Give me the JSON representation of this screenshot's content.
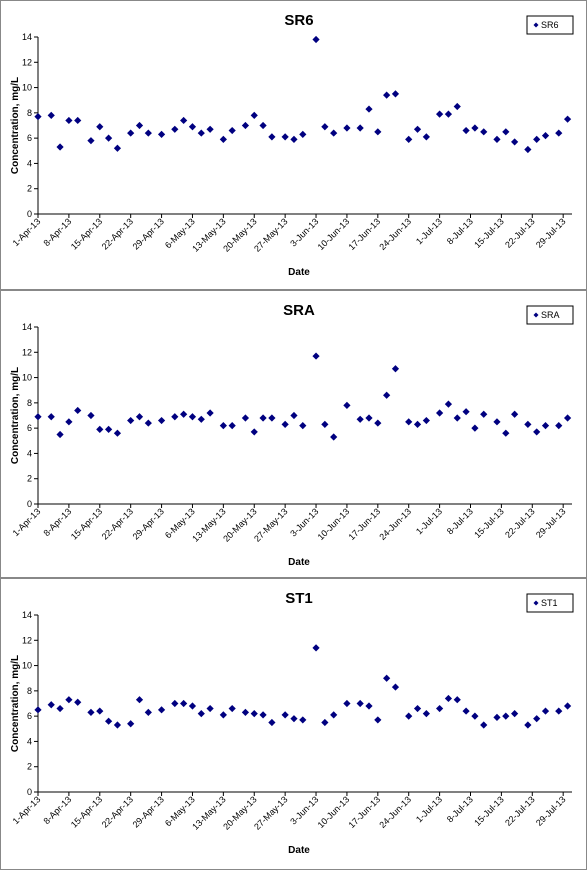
{
  "chart_data": [
    {
      "type": "scatter",
      "title": "SR6",
      "x_label": "Date",
      "y_label": "Concentration, mg/L",
      "x": [
        "2013-04-01",
        "2013-04-04",
        "2013-04-06",
        "2013-04-08",
        "2013-04-10",
        "2013-04-13",
        "2013-04-15",
        "2013-04-17",
        "2013-04-19",
        "2013-04-22",
        "2013-04-24",
        "2013-04-26",
        "2013-04-29",
        "2013-05-02",
        "2013-05-04",
        "2013-05-06",
        "2013-05-08",
        "2013-05-10",
        "2013-05-13",
        "2013-05-15",
        "2013-05-18",
        "2013-05-20",
        "2013-05-22",
        "2013-05-24",
        "2013-05-27",
        "2013-05-29",
        "2013-05-31",
        "2013-06-03",
        "2013-06-05",
        "2013-06-07",
        "2013-06-10",
        "2013-06-13",
        "2013-06-15",
        "2013-06-17",
        "2013-06-19",
        "2013-06-21",
        "2013-06-24",
        "2013-06-26",
        "2013-06-28",
        "2013-07-01",
        "2013-07-03",
        "2013-07-05",
        "2013-07-07",
        "2013-07-09",
        "2013-07-11",
        "2013-07-14",
        "2013-07-16",
        "2013-07-18",
        "2013-07-21",
        "2013-07-23",
        "2013-07-25",
        "2013-07-28",
        "2013-07-30"
      ],
      "series": [
        {
          "name": "SR6",
          "color": "#000080",
          "values": [
            7.7,
            7.8,
            5.3,
            7.4,
            7.4,
            5.8,
            6.9,
            6.0,
            5.2,
            6.4,
            7.0,
            6.4,
            6.3,
            6.7,
            7.4,
            6.9,
            6.4,
            6.7,
            5.9,
            6.6,
            7.0,
            7.8,
            7.0,
            6.1,
            6.1,
            5.9,
            6.3,
            13.8,
            6.9,
            6.4,
            6.8,
            6.8,
            8.3,
            6.5,
            9.4,
            9.5,
            5.9,
            6.7,
            6.1,
            7.9,
            7.9,
            8.5,
            6.6,
            6.8,
            6.5,
            5.9,
            6.5,
            5.7,
            5.1,
            5.9,
            6.2,
            6.4,
            7.5
          ]
        }
      ],
      "xlim": [
        "2013-04-01",
        "2013-07-31"
      ],
      "xticks": [
        {
          "value": "2013-04-01",
          "label": "1-Apr-13"
        },
        {
          "value": "2013-04-08",
          "label": "8-Apr-13"
        },
        {
          "value": "2013-04-15",
          "label": "15-Apr-13"
        },
        {
          "value": "2013-04-22",
          "label": "22-Apr-13"
        },
        {
          "value": "2013-04-29",
          "label": "29-Apr-13"
        },
        {
          "value": "2013-05-06",
          "label": "6-May-13"
        },
        {
          "value": "2013-05-13",
          "label": "13-May-13"
        },
        {
          "value": "2013-05-20",
          "label": "20-May-13"
        },
        {
          "value": "2013-05-27",
          "label": "27-May-13"
        },
        {
          "value": "2013-06-03",
          "label": "3-Jun-13"
        },
        {
          "value": "2013-06-10",
          "label": "10-Jun-13"
        },
        {
          "value": "2013-06-17",
          "label": "17-Jun-13"
        },
        {
          "value": "2013-06-24",
          "label": "24-Jun-13"
        },
        {
          "value": "2013-07-01",
          "label": "1-Jul-13"
        },
        {
          "value": "2013-07-08",
          "label": "8-Jul-13"
        },
        {
          "value": "2013-07-15",
          "label": "15-Jul-13"
        },
        {
          "value": "2013-07-22",
          "label": "22-Jul-13"
        },
        {
          "value": "2013-07-29",
          "label": "29-Jul-13"
        }
      ],
      "ylim": [
        0,
        14
      ],
      "yticks": [
        0,
        2,
        4,
        6,
        8,
        10,
        12,
        14
      ],
      "grid": false,
      "legend": "top-right"
    },
    {
      "type": "scatter",
      "title": "SRA",
      "x_label": "Date",
      "y_label": "Concentration, mg/L",
      "x": [
        "2013-04-01",
        "2013-04-04",
        "2013-04-06",
        "2013-04-08",
        "2013-04-10",
        "2013-04-13",
        "2013-04-15",
        "2013-04-17",
        "2013-04-19",
        "2013-04-22",
        "2013-04-24",
        "2013-04-26",
        "2013-04-29",
        "2013-05-02",
        "2013-05-04",
        "2013-05-06",
        "2013-05-08",
        "2013-05-10",
        "2013-05-13",
        "2013-05-15",
        "2013-05-18",
        "2013-05-20",
        "2013-05-22",
        "2013-05-24",
        "2013-05-27",
        "2013-05-29",
        "2013-05-31",
        "2013-06-03",
        "2013-06-05",
        "2013-06-07",
        "2013-06-10",
        "2013-06-13",
        "2013-06-15",
        "2013-06-17",
        "2013-06-19",
        "2013-06-21",
        "2013-06-24",
        "2013-06-26",
        "2013-06-28",
        "2013-07-01",
        "2013-07-03",
        "2013-07-05",
        "2013-07-07",
        "2013-07-09",
        "2013-07-11",
        "2013-07-14",
        "2013-07-16",
        "2013-07-18",
        "2013-07-21",
        "2013-07-23",
        "2013-07-25",
        "2013-07-28",
        "2013-07-30"
      ],
      "series": [
        {
          "name": "SRA",
          "color": "#000080",
          "values": [
            6.9,
            6.9,
            5.5,
            6.5,
            7.4,
            7.0,
            5.9,
            5.9,
            5.6,
            6.6,
            6.9,
            6.4,
            6.6,
            6.9,
            7.1,
            6.9,
            6.7,
            7.2,
            6.2,
            6.2,
            6.8,
            5.7,
            6.8,
            6.8,
            6.3,
            7.0,
            6.2,
            11.7,
            6.3,
            5.3,
            7.8,
            6.7,
            6.8,
            6.4,
            8.6,
            10.7,
            6.5,
            6.3,
            6.6,
            7.2,
            7.9,
            6.8,
            7.3,
            6.0,
            7.1,
            6.5,
            5.6,
            7.1,
            6.3,
            5.7,
            6.2,
            6.2,
            6.8
          ]
        }
      ],
      "xlim": [
        "2013-04-01",
        "2013-07-31"
      ],
      "xticks": [
        {
          "value": "2013-04-01",
          "label": "1-Apr-13"
        },
        {
          "value": "2013-04-08",
          "label": "8-Apr-13"
        },
        {
          "value": "2013-04-15",
          "label": "15-Apr-13"
        },
        {
          "value": "2013-04-22",
          "label": "22-Apr-13"
        },
        {
          "value": "2013-04-29",
          "label": "29-Apr-13"
        },
        {
          "value": "2013-05-06",
          "label": "6-May-13"
        },
        {
          "value": "2013-05-13",
          "label": "13-May-13"
        },
        {
          "value": "2013-05-20",
          "label": "20-May-13"
        },
        {
          "value": "2013-05-27",
          "label": "27-May-13"
        },
        {
          "value": "2013-06-03",
          "label": "3-Jun-13"
        },
        {
          "value": "2013-06-10",
          "label": "10-Jun-13"
        },
        {
          "value": "2013-06-17",
          "label": "17-Jun-13"
        },
        {
          "value": "2013-06-24",
          "label": "24-Jun-13"
        },
        {
          "value": "2013-07-01",
          "label": "1-Jul-13"
        },
        {
          "value": "2013-07-08",
          "label": "8-Jul-13"
        },
        {
          "value": "2013-07-15",
          "label": "15-Jul-13"
        },
        {
          "value": "2013-07-22",
          "label": "22-Jul-13"
        },
        {
          "value": "2013-07-29",
          "label": "29-Jul-13"
        }
      ],
      "ylim": [
        0,
        14
      ],
      "yticks": [
        0,
        2,
        4,
        6,
        8,
        10,
        12,
        14
      ],
      "grid": false,
      "legend": "top-right"
    },
    {
      "type": "scatter",
      "title": "ST1",
      "x_label": "Date",
      "y_label": "Concentration, mg/L",
      "x": [
        "2013-04-01",
        "2013-04-04",
        "2013-04-06",
        "2013-04-08",
        "2013-04-10",
        "2013-04-13",
        "2013-04-15",
        "2013-04-17",
        "2013-04-19",
        "2013-04-22",
        "2013-04-24",
        "2013-04-26",
        "2013-04-29",
        "2013-05-02",
        "2013-05-04",
        "2013-05-06",
        "2013-05-08",
        "2013-05-10",
        "2013-05-13",
        "2013-05-15",
        "2013-05-18",
        "2013-05-20",
        "2013-05-22",
        "2013-05-24",
        "2013-05-27",
        "2013-05-29",
        "2013-05-31",
        "2013-06-03",
        "2013-06-05",
        "2013-06-07",
        "2013-06-10",
        "2013-06-13",
        "2013-06-15",
        "2013-06-17",
        "2013-06-19",
        "2013-06-21",
        "2013-06-24",
        "2013-06-26",
        "2013-06-28",
        "2013-07-01",
        "2013-07-03",
        "2013-07-05",
        "2013-07-07",
        "2013-07-09",
        "2013-07-11",
        "2013-07-14",
        "2013-07-16",
        "2013-07-18",
        "2013-07-21",
        "2013-07-23",
        "2013-07-25",
        "2013-07-28",
        "2013-07-30"
      ],
      "series": [
        {
          "name": "ST1",
          "color": "#000080",
          "values": [
            6.5,
            6.9,
            6.6,
            7.3,
            7.1,
            6.3,
            6.4,
            5.6,
            5.3,
            5.4,
            7.3,
            6.3,
            6.5,
            7.0,
            7.0,
            6.8,
            6.2,
            6.6,
            6.1,
            6.6,
            6.3,
            6.2,
            6.1,
            5.5,
            6.1,
            5.8,
            5.7,
            11.4,
            5.5,
            6.1,
            7.0,
            7.0,
            6.8,
            5.7,
            9.0,
            8.3,
            6.0,
            6.6,
            6.2,
            6.6,
            7.4,
            7.3,
            6.4,
            6.0,
            5.3,
            5.9,
            6.0,
            6.2,
            5.3,
            5.8,
            6.4,
            6.4,
            6.8
          ]
        }
      ],
      "xlim": [
        "2013-04-01",
        "2013-07-31"
      ],
      "xticks": [
        {
          "value": "2013-04-01",
          "label": "1-Apr-13"
        },
        {
          "value": "2013-04-08",
          "label": "8-Apr-13"
        },
        {
          "value": "2013-04-15",
          "label": "15-Apr-13"
        },
        {
          "value": "2013-04-22",
          "label": "22-Apr-13"
        },
        {
          "value": "2013-04-29",
          "label": "29-Apr-13"
        },
        {
          "value": "2013-05-06",
          "label": "6-May-13"
        },
        {
          "value": "2013-05-13",
          "label": "13-May-13"
        },
        {
          "value": "2013-05-20",
          "label": "20-May-13"
        },
        {
          "value": "2013-05-27",
          "label": "27-May-13"
        },
        {
          "value": "2013-06-03",
          "label": "3-Jun-13"
        },
        {
          "value": "2013-06-10",
          "label": "10-Jun-13"
        },
        {
          "value": "2013-06-17",
          "label": "17-Jun-13"
        },
        {
          "value": "2013-06-24",
          "label": "24-Jun-13"
        },
        {
          "value": "2013-07-01",
          "label": "1-Jul-13"
        },
        {
          "value": "2013-07-08",
          "label": "8-Jul-13"
        },
        {
          "value": "2013-07-15",
          "label": "15-Jul-13"
        },
        {
          "value": "2013-07-22",
          "label": "22-Jul-13"
        },
        {
          "value": "2013-07-29",
          "label": "29-Jul-13"
        }
      ],
      "ylim": [
        0,
        14
      ],
      "yticks": [
        0,
        2,
        4,
        6,
        8,
        10,
        12,
        14
      ],
      "grid": false,
      "legend": "top-right"
    }
  ]
}
